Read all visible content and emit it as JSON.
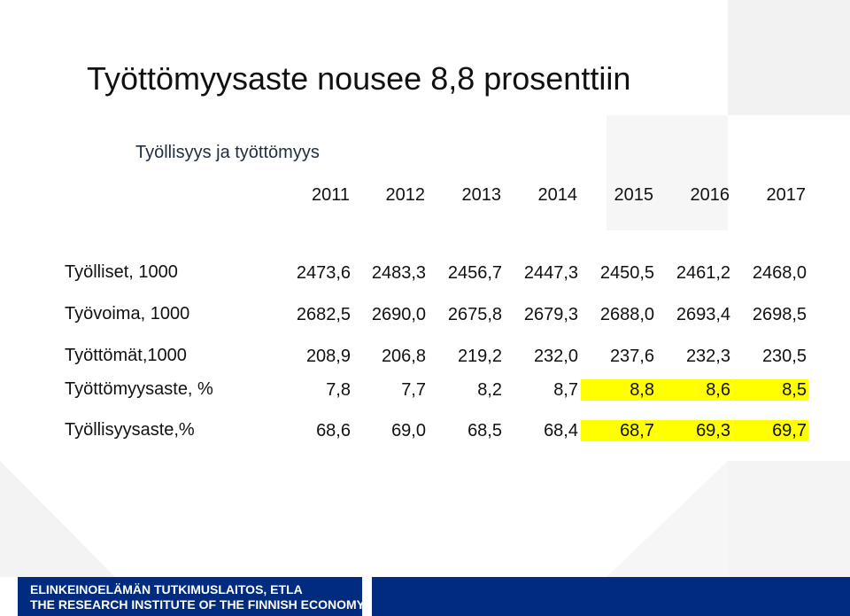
{
  "title": "Työttömyysaste nousee 8,8 prosenttiin",
  "subtitle": "Työllisyys ja työttömyys",
  "years": [
    "2011",
    "2012",
    "2013",
    "2014",
    "2015",
    "2016",
    "2017"
  ],
  "rows": [
    {
      "label": "Työlliset, 1000",
      "values": [
        "2473,6",
        "2483,3",
        "2456,7",
        "2447,3",
        "2450,5",
        "2461,2",
        "2468,0"
      ]
    },
    {
      "label": "Työvoima, 1000",
      "values": [
        "2682,5",
        "2690,0",
        "2675,8",
        "2679,3",
        "2688,0",
        "2693,4",
        "2698,5"
      ]
    },
    {
      "label": "Työttömät,1000",
      "values": [
        "208,9",
        "206,8",
        "219,2",
        "232,0",
        "237,6",
        "232,3",
        "230,5"
      ]
    },
    {
      "label": "Työttömyysaste, %",
      "values": [
        "7,8",
        "7,7",
        "8,2",
        "8,7",
        "8,8",
        "8,6",
        "8,5"
      ]
    },
    {
      "label": "Työllisyysaste,%",
      "values": [
        "68,6",
        "69,0",
        "68,5",
        "68,4",
        "68,7",
        "69,3",
        "69,7"
      ]
    }
  ],
  "highlight_color": "#ffff00",
  "footer": {
    "line1": "ELINKEINOELÄMÄN TUTKIMUSLAITOS, ETLA",
    "line2": "THE RESEARCH INSTITUTE OF THE FINNISH ECONOMY"
  }
}
